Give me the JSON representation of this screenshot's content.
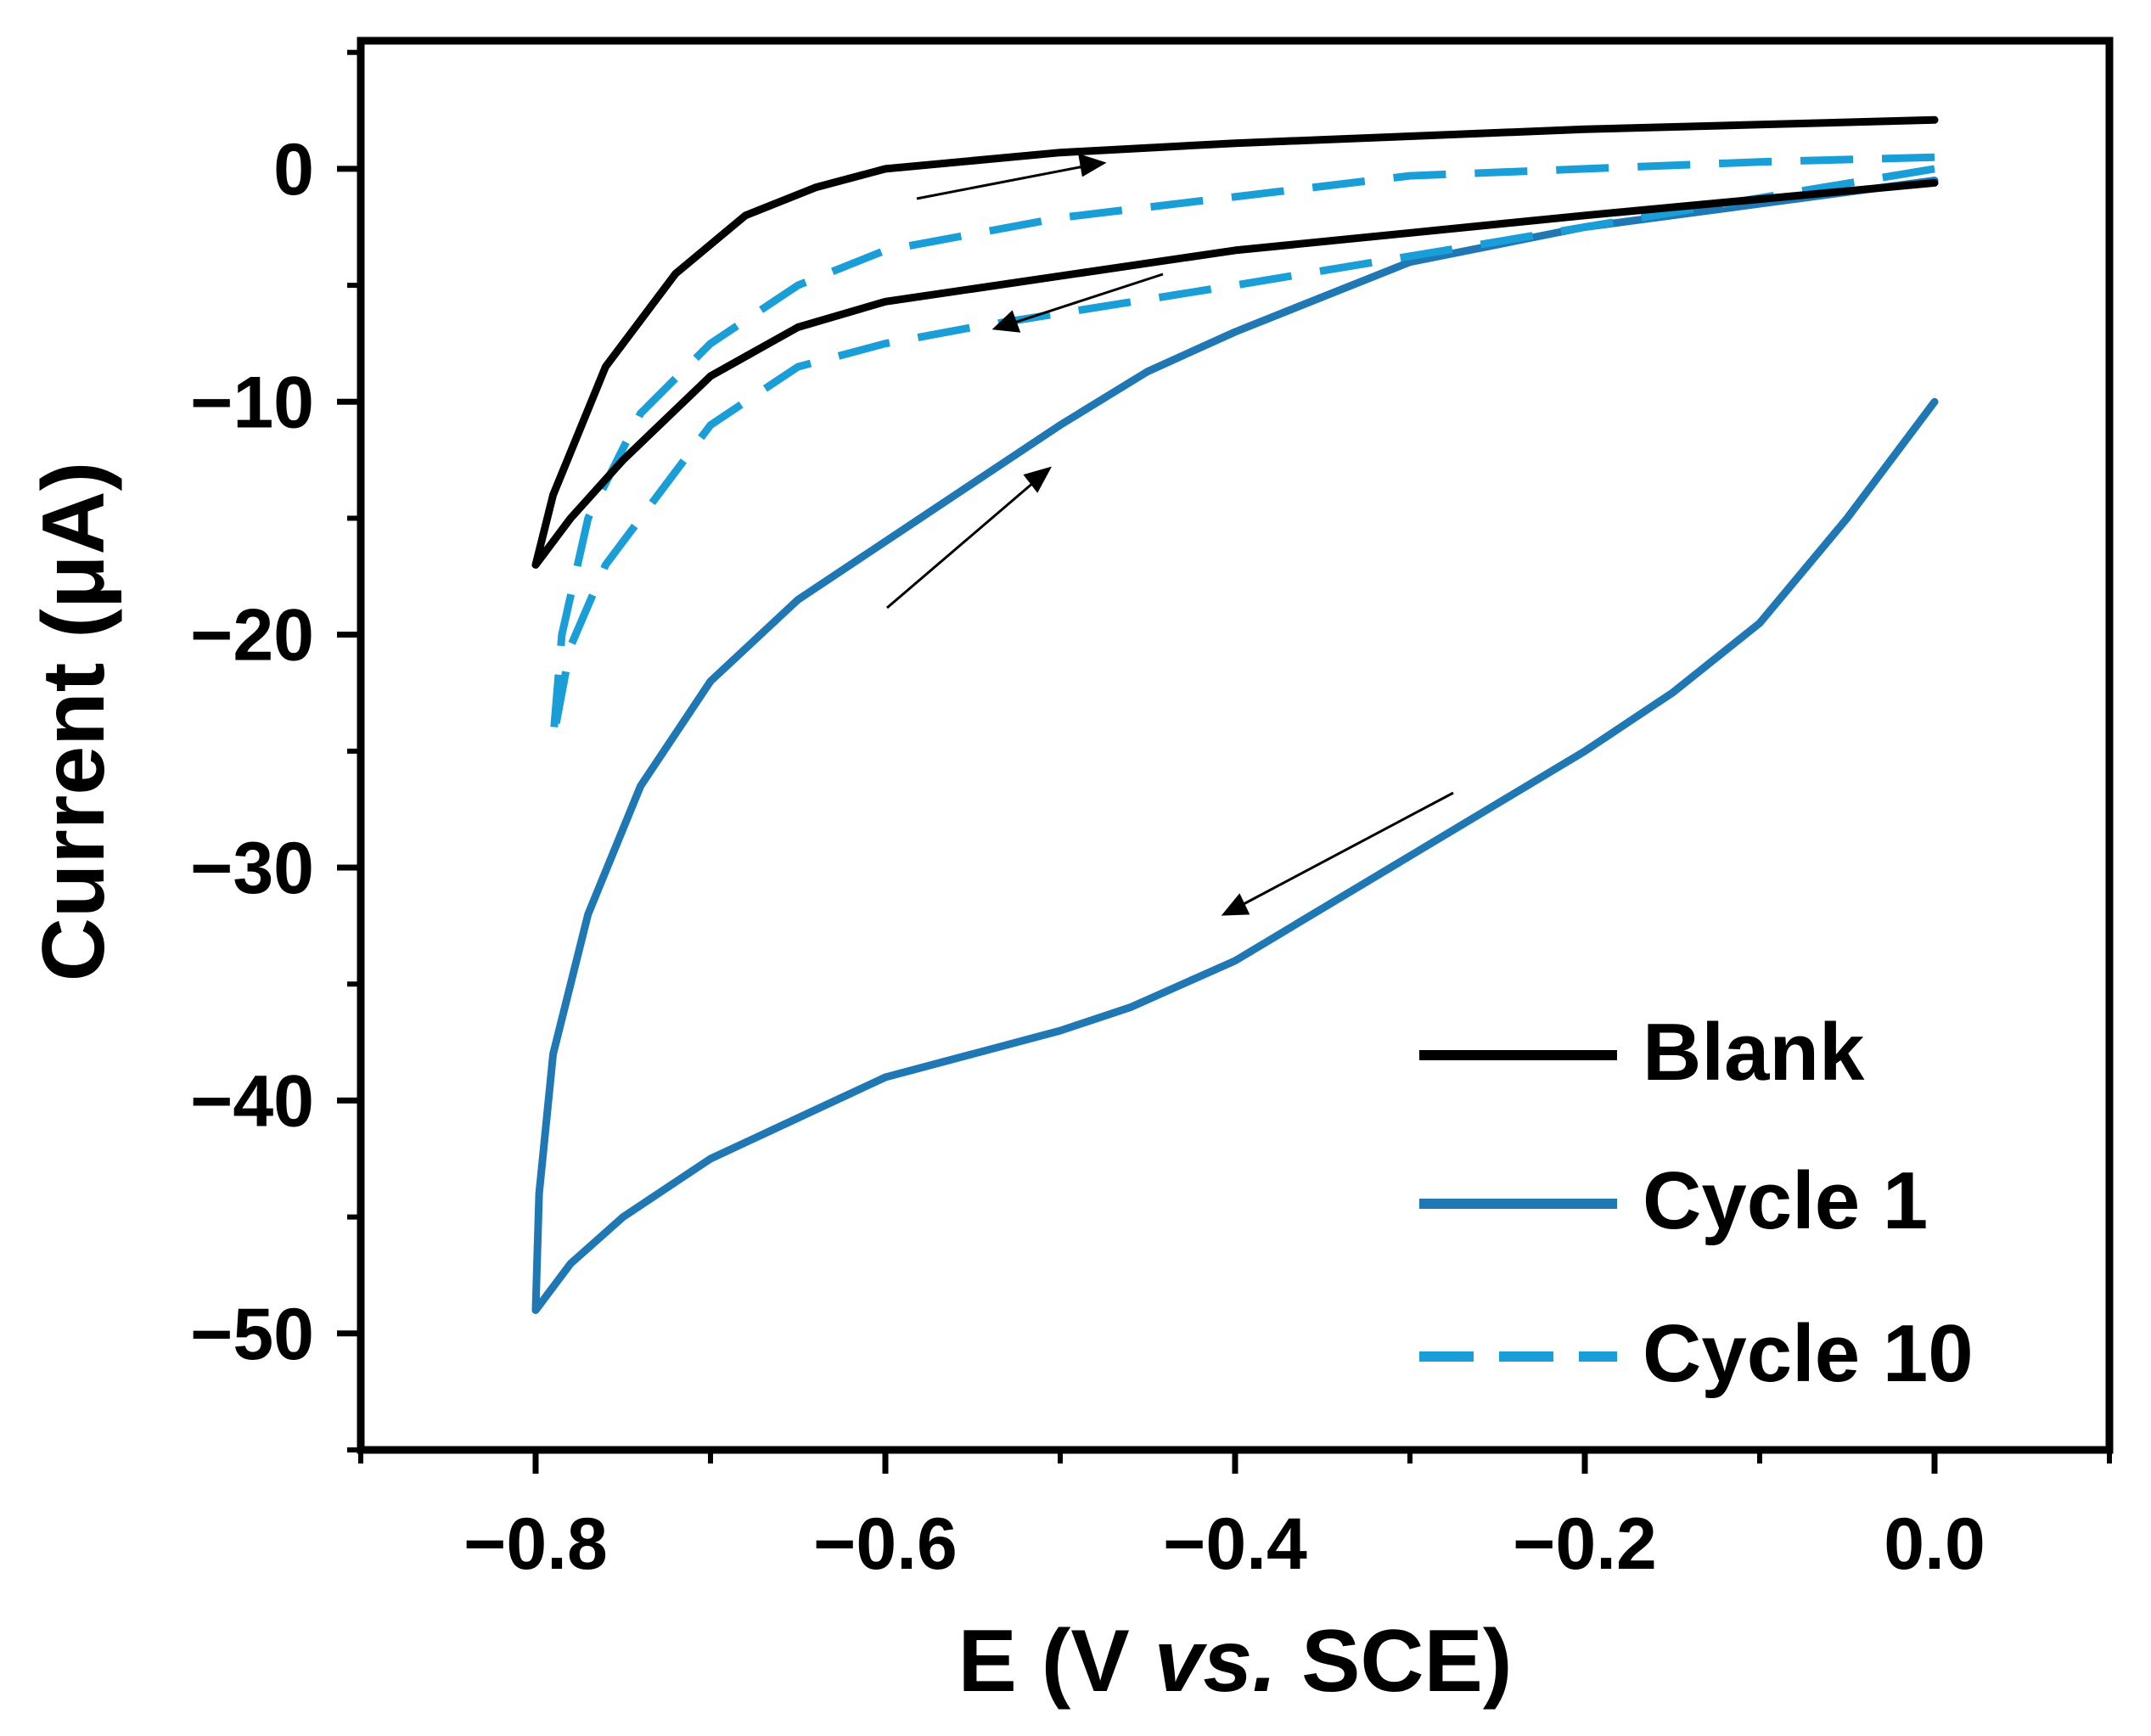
{
  "chart_data": {
    "type": "line",
    "title": "",
    "xlabel_main": "E (V ",
    "xlabel_italic": "vs.",
    "xlabel_tail": " SCE)",
    "ylabel": "Current (μA)",
    "xlim": [
      -0.9,
      0.1
    ],
    "ylim": [
      -55,
      5.5
    ],
    "xticks": [
      -0.8,
      -0.6,
      -0.4,
      -0.2,
      0.0
    ],
    "xtick_labels": [
      "−0.8",
      "−0.6",
      "−0.4",
      "−0.2",
      "0.0"
    ],
    "yticks": [
      0,
      -10,
      -20,
      -30,
      -40,
      -50
    ],
    "ytick_labels": [
      "0",
      "−10",
      "−20",
      "−30",
      "−40",
      "−50"
    ],
    "legend_position": "bottom-right",
    "series": [
      {
        "name": "Blank",
        "color": "#000000",
        "dashed": false,
        "x": [
          0.0,
          -0.2,
          -0.4,
          -0.6,
          -0.65,
          -0.7,
          -0.75,
          -0.78,
          -0.8,
          -0.79,
          -0.76,
          -0.72,
          -0.68,
          -0.64,
          -0.6,
          -0.5,
          -0.4,
          -0.3,
          -0.2,
          -0.1,
          0.0
        ],
        "y": [
          -0.6,
          -2.0,
          -3.5,
          -5.7,
          -6.8,
          -8.9,
          -12.5,
          -15.0,
          -17.0,
          -14.0,
          -8.5,
          -4.5,
          -2.0,
          -0.8,
          0.0,
          0.7,
          1.1,
          1.4,
          1.7,
          1.9,
          2.1
        ]
      },
      {
        "name": "Cycle 1",
        "color": "#1f78b4",
        "dashed": false,
        "x": [
          0.0,
          -0.05,
          -0.1,
          -0.15,
          -0.2,
          -0.3,
          -0.4,
          -0.46,
          -0.5,
          -0.6,
          -0.7,
          -0.75,
          -0.78,
          -0.8,
          -0.798,
          -0.79,
          -0.77,
          -0.74,
          -0.7,
          -0.65,
          -0.6,
          -0.55,
          -0.5,
          -0.45,
          -0.4,
          -0.35,
          -0.3,
          -0.2,
          -0.1,
          0.0
        ],
        "y": [
          -10.0,
          -15.0,
          -19.5,
          -22.5,
          -25.0,
          -29.5,
          -34.0,
          -36.0,
          -37.0,
          -39.0,
          -42.5,
          -45.0,
          -47.0,
          -49.0,
          -44.0,
          -38.0,
          -32.0,
          -26.5,
          -22.0,
          -18.5,
          -16.0,
          -13.5,
          -11.0,
          -8.7,
          -7.0,
          -5.5,
          -4.0,
          -2.5,
          -1.5,
          -0.5
        ]
      },
      {
        "name": "Cycle 10",
        "color": "#1a9ed8",
        "dashed": true,
        "x": [
          0.0,
          -0.2,
          -0.4,
          -0.55,
          -0.6,
          -0.65,
          -0.7,
          -0.73,
          -0.76,
          -0.78,
          -0.79,
          -0.785,
          -0.77,
          -0.74,
          -0.7,
          -0.65,
          -0.6,
          -0.5,
          -0.4,
          -0.3,
          -0.2,
          -0.1,
          0.0
        ],
        "y": [
          0.0,
          -2.5,
          -5.0,
          -6.8,
          -7.5,
          -8.5,
          -11.0,
          -14.0,
          -17.0,
          -20.5,
          -24.5,
          -20.0,
          -15.0,
          -10.5,
          -7.5,
          -5.0,
          -3.5,
          -2.1,
          -1.2,
          -0.3,
          0.0,
          0.3,
          0.5
        ]
      }
    ]
  }
}
